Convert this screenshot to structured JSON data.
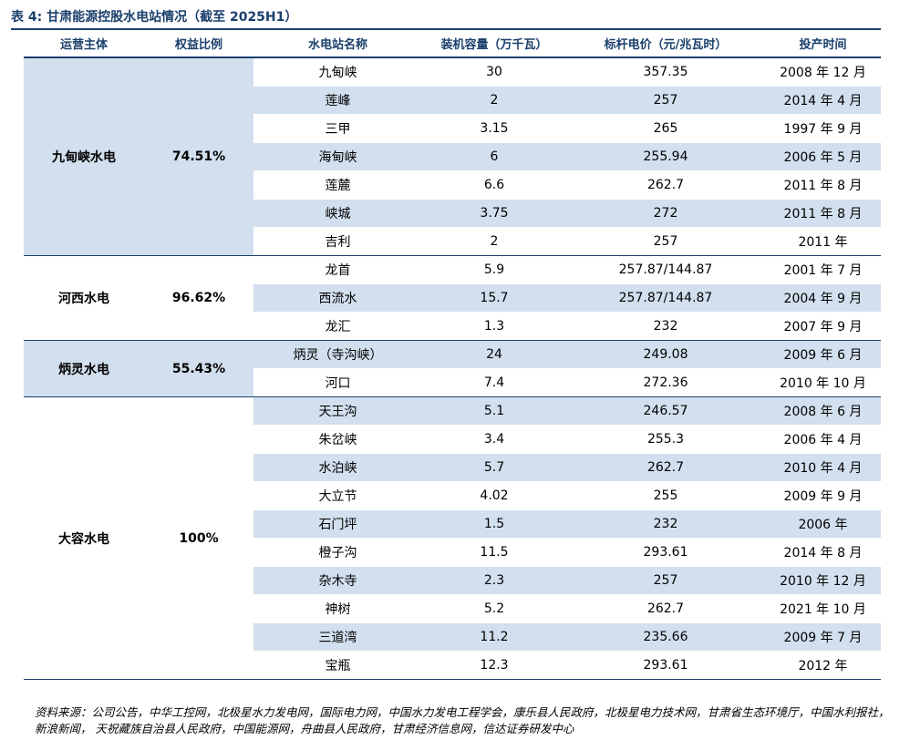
{
  "title": "表 4:  甘肃能源控股水电站情况（截至 2025H1）",
  "headers": [
    "运营主体",
    "权益比例",
    "水电站名称",
    "装机容量（万千瓦）",
    "标杆电价（元/兆瓦时）",
    "投产时间"
  ],
  "groups": [
    {
      "entity": "九甸峡水电",
      "equity": "74.51%",
      "shaded": true,
      "stations": [
        {
          "name": "九甸峡",
          "capacity": "30",
          "price": "357.35",
          "date": "2008 年 12 月",
          "shaded": false
        },
        {
          "name": "莲峰",
          "capacity": "2",
          "price": "257",
          "date": "2014 年 4 月",
          "shaded": true
        },
        {
          "name": "三甲",
          "capacity": "3.15",
          "price": "265",
          "date": "1997 年 9 月",
          "shaded": false
        },
        {
          "name": "海甸峡",
          "capacity": "6",
          "price": "255.94",
          "date": "2006 年 5 月",
          "shaded": true
        },
        {
          "name": "莲麓",
          "capacity": "6.6",
          "price": "262.7",
          "date": "2011 年 8 月",
          "shaded": false
        },
        {
          "name": "峡城",
          "capacity": "3.75",
          "price": "272",
          "date": "2011 年 8 月",
          "shaded": true
        },
        {
          "name": "吉利",
          "capacity": "2",
          "price": "257",
          "date": "2011 年",
          "shaded": false
        }
      ]
    },
    {
      "entity": "河西水电",
      "equity": "96.62%",
      "shaded": false,
      "stations": [
        {
          "name": "龙首",
          "capacity": "5.9",
          "price": "257.87/144.87",
          "date": "2001 年 7 月",
          "shaded": false
        },
        {
          "name": "西流水",
          "capacity": "15.7",
          "price": "257.87/144.87",
          "date": "2004 年 9 月",
          "shaded": true
        },
        {
          "name": "龙汇",
          "capacity": "1.3",
          "price": "232",
          "date": "2007 年 9 月",
          "shaded": false
        }
      ]
    },
    {
      "entity": "炳灵水电",
      "equity": "55.43%",
      "shaded": true,
      "stations": [
        {
          "name": "炳灵（寺沟峡）",
          "capacity": "24",
          "price": "249.08",
          "date": "2009 年 6 月",
          "shaded": true
        },
        {
          "name": "河口",
          "capacity": "7.4",
          "price": "272.36",
          "date": "2010 年 10 月",
          "shaded": false
        }
      ]
    },
    {
      "entity": "大容水电",
      "equity": "100%",
      "shaded": false,
      "stations": [
        {
          "name": "天王沟",
          "capacity": "5.1",
          "price": "246.57",
          "date": "2008 年 6 月",
          "shaded": true
        },
        {
          "name": "朱岔峡",
          "capacity": "3.4",
          "price": "255.3",
          "date": "2006 年 4 月",
          "shaded": false
        },
        {
          "name": "水泊峡",
          "capacity": "5.7",
          "price": "262.7",
          "date": "2010 年 4 月",
          "shaded": true
        },
        {
          "name": "大立节",
          "capacity": "4.02",
          "price": "255",
          "date": "2009 年 9 月",
          "shaded": false
        },
        {
          "name": "石门坪",
          "capacity": "1.5",
          "price": "232",
          "date": "2006 年",
          "shaded": true
        },
        {
          "name": "橙子沟",
          "capacity": "11.5",
          "price": "293.61",
          "date": "2014 年 8 月",
          "shaded": false
        },
        {
          "name": "杂木寺",
          "capacity": "2.3",
          "price": "257",
          "date": "2010 年 12 月",
          "shaded": true
        },
        {
          "name": "神树",
          "capacity": "5.2",
          "price": "262.7",
          "date": "2021 年 10 月",
          "shaded": false
        },
        {
          "name": "三道湾",
          "capacity": "11.2",
          "price": "235.66",
          "date": "2009 年 7 月",
          "shaded": true
        },
        {
          "name": "宝瓶",
          "capacity": "12.3",
          "price": "293.61",
          "date": "2012 年",
          "shaded": false
        }
      ]
    }
  ],
  "source": "资料来源：公司公告，中华工控网，北极星水力发电网，国际电力网，中国水力发电工程学会，康乐县人民政府，北极星电力技术网，甘肃省生态环境厅，中国水利报社，新浪新闻， 天祝藏族自治县人民政府，中国能源网，舟曲县人民政府，甘肃经济信息网，信达证券研发中心"
}
